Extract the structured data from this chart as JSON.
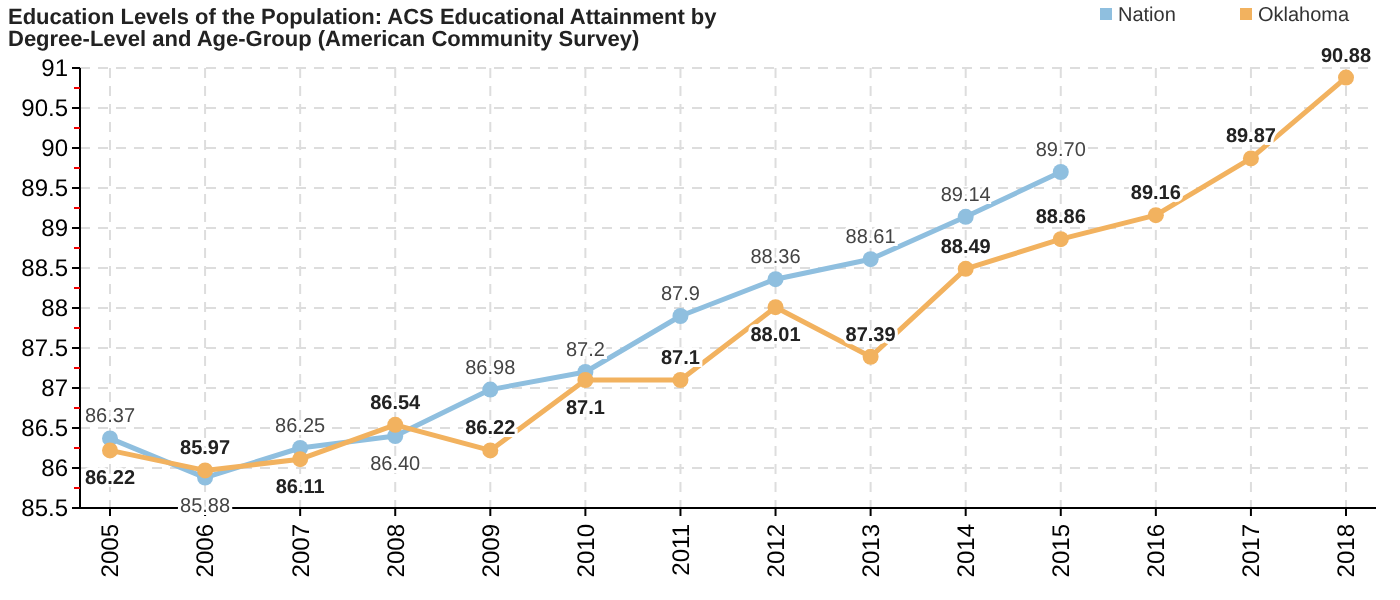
{
  "chart_data": {
    "type": "line",
    "title": "Education Levels of the Population: ACS Educational Attainment by Degree-Level and Age-Group (American Community Survey)",
    "categories": [
      "2005",
      "2006",
      "2007",
      "2008",
      "2009",
      "2010",
      "2011",
      "2012",
      "2013",
      "2014",
      "2015",
      "2016",
      "2017",
      "2018"
    ],
    "series": [
      {
        "name": "Nation",
        "color": "#8fbfdf",
        "values": [
          86.37,
          85.88,
          86.25,
          86.4,
          86.98,
          87.2,
          87.9,
          88.36,
          88.61,
          89.14,
          89.7,
          null,
          null,
          null
        ],
        "value_labels": [
          "86.37",
          "85.88",
          "86.25",
          "86.40",
          "86.98",
          "87.2",
          "87.9",
          "88.36",
          "88.61",
          "89.14",
          "89.70",
          null,
          null,
          null
        ]
      },
      {
        "name": "Oklahoma",
        "color": "#f2b25f",
        "values": [
          86.22,
          85.97,
          86.11,
          86.54,
          86.22,
          87.1,
          87.1,
          88.01,
          87.39,
          88.49,
          88.86,
          89.16,
          89.87,
          90.88
        ],
        "value_labels": [
          "86.22",
          "85.97",
          "86.11",
          "86.54",
          "86.22",
          "87.1",
          "87.1",
          "88.01",
          "87.39",
          "88.49",
          "88.86",
          "89.16",
          "89.87",
          "90.88"
        ]
      }
    ],
    "ylim": [
      85.5,
      91
    ],
    "yticks": [
      85.5,
      {
        "value": 85.75,
        "label": null
      },
      86,
      {
        "value": 86.25,
        "label": null
      },
      86.5,
      {
        "value": 86.75,
        "label": null
      },
      87,
      {
        "value": 87.25,
        "label": null
      },
      87.5,
      {
        "value": 87.75,
        "label": null
      },
      88,
      {
        "value": 88.25,
        "label": null
      },
      88.5,
      {
        "value": 88.75,
        "label": null
      },
      89,
      {
        "value": 89.25,
        "label": null
      },
      89.5,
      {
        "value": 89.75,
        "label": null
      },
      90,
      {
        "value": 90.25,
        "label": null
      },
      90.5,
      {
        "value": 90.75,
        "label": null
      },
      91
    ],
    "grid": true,
    "legend": "top right",
    "marker": "circle",
    "line_style": "solid"
  }
}
